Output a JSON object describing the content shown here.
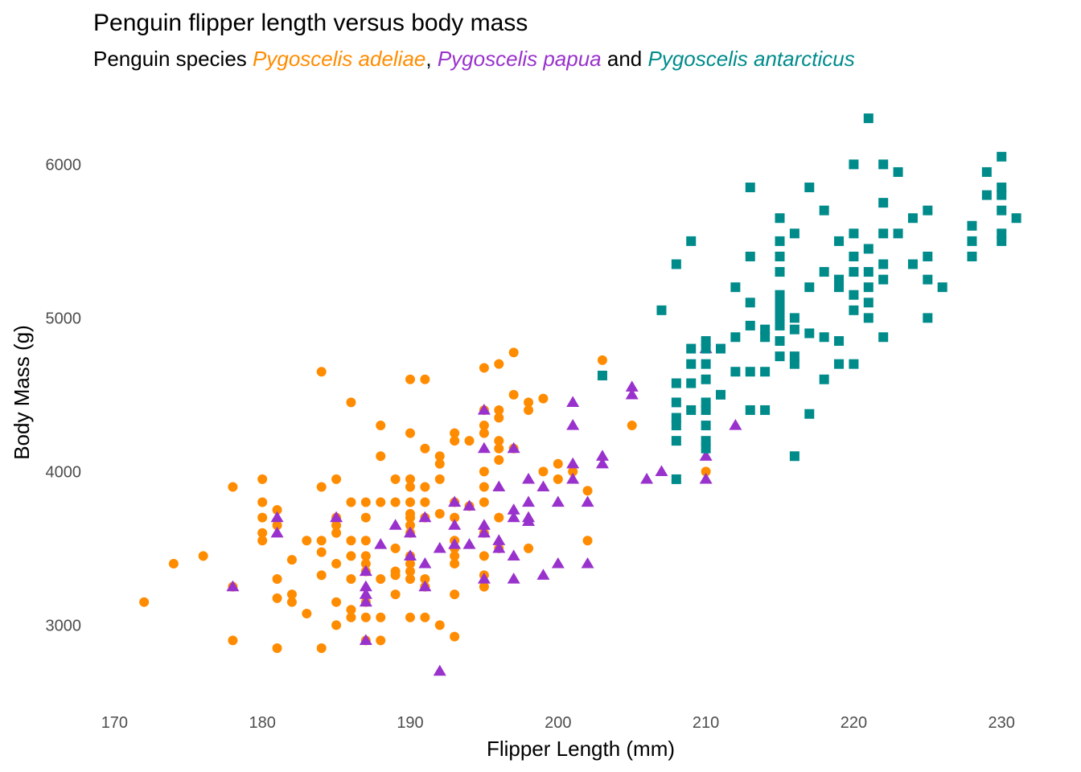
{
  "chart_data": {
    "type": "scatter",
    "title": "Penguin flipper length versus body mass",
    "subtitle": {
      "prefix": "Penguin species ",
      "sep1": ", ",
      "sep2": " and "
    },
    "xlabel": "Flipper Length (mm)",
    "ylabel": "Body Mass (g)",
    "xlim": [
      169,
      232
    ],
    "ylim": [
      2630,
      6400
    ],
    "xticks": [
      170,
      180,
      190,
      200,
      210,
      220,
      230
    ],
    "yticks": [
      3000,
      4000,
      5000,
      6000
    ],
    "grid": false,
    "legend": "none",
    "series": [
      {
        "name": "Pygoscelis adeliae",
        "marker": "circle",
        "color": "#FF8C00",
        "points": [
          [
            172,
            3150
          ],
          [
            174,
            3400
          ],
          [
            176,
            3450
          ],
          [
            178,
            3900
          ],
          [
            178,
            2900
          ],
          [
            178,
            3250
          ],
          [
            180,
            3950
          ],
          [
            180,
            3800
          ],
          [
            180,
            3700
          ],
          [
            180,
            3600
          ],
          [
            180,
            3550
          ],
          [
            181,
            3750
          ],
          [
            181,
            3650
          ],
          [
            181,
            3300
          ],
          [
            181,
            3175
          ],
          [
            181,
            2850
          ],
          [
            182,
            3200
          ],
          [
            182,
            3425
          ],
          [
            182,
            3150
          ],
          [
            183,
            3550
          ],
          [
            183,
            3075
          ],
          [
            184,
            4650
          ],
          [
            184,
            3900
          ],
          [
            184,
            3550
          ],
          [
            184,
            3475
          ],
          [
            184,
            3325
          ],
          [
            184,
            2850
          ],
          [
            185,
            3950
          ],
          [
            185,
            3700
          ],
          [
            185,
            3650
          ],
          [
            185,
            3600
          ],
          [
            185,
            3400
          ],
          [
            185,
            3150
          ],
          [
            185,
            3000
          ],
          [
            186,
            4450
          ],
          [
            186,
            3800
          ],
          [
            186,
            3550
          ],
          [
            186,
            3450
          ],
          [
            186,
            3300
          ],
          [
            186,
            3100
          ],
          [
            186,
            3050
          ],
          [
            187,
            3800
          ],
          [
            187,
            3700
          ],
          [
            187,
            3550
          ],
          [
            187,
            3450
          ],
          [
            187,
            3400
          ],
          [
            187,
            3350
          ],
          [
            187,
            3150
          ],
          [
            187,
            3050
          ],
          [
            187,
            2900
          ],
          [
            188,
            4300
          ],
          [
            188,
            4100
          ],
          [
            188,
            3800
          ],
          [
            188,
            3300
          ],
          [
            188,
            3050
          ],
          [
            188,
            2900
          ],
          [
            189,
            3950
          ],
          [
            189,
            3800
          ],
          [
            189,
            3500
          ],
          [
            189,
            3350
          ],
          [
            189,
            3325
          ],
          [
            189,
            3200
          ],
          [
            190,
            4600
          ],
          [
            190,
            4250
          ],
          [
            190,
            3950
          ],
          [
            190,
            3900
          ],
          [
            190,
            3800
          ],
          [
            190,
            3725
          ],
          [
            190,
            3700
          ],
          [
            190,
            3650
          ],
          [
            190,
            3600
          ],
          [
            190,
            3450
          ],
          [
            190,
            3400
          ],
          [
            190,
            3350
          ],
          [
            190,
            3300
          ],
          [
            190,
            3050
          ],
          [
            191,
            4600
          ],
          [
            191,
            4150
          ],
          [
            191,
            3900
          ],
          [
            191,
            3800
          ],
          [
            191,
            3700
          ],
          [
            191,
            3300
          ],
          [
            191,
            3250
          ],
          [
            191,
            3050
          ],
          [
            192,
            4100
          ],
          [
            192,
            4050
          ],
          [
            192,
            3950
          ],
          [
            192,
            3725
          ],
          [
            192,
            3000
          ],
          [
            193,
            4250
          ],
          [
            193,
            4200
          ],
          [
            193,
            3800
          ],
          [
            193,
            3700
          ],
          [
            193,
            3550
          ],
          [
            193,
            3500
          ],
          [
            193,
            3450
          ],
          [
            193,
            3400
          ],
          [
            193,
            3200
          ],
          [
            193,
            2925
          ],
          [
            194,
            4200
          ],
          [
            194,
            3775
          ],
          [
            195,
            4675
          ],
          [
            195,
            4400
          ],
          [
            195,
            4300
          ],
          [
            195,
            4250
          ],
          [
            195,
            4000
          ],
          [
            195,
            3900
          ],
          [
            195,
            3800
          ],
          [
            195,
            3600
          ],
          [
            195,
            3450
          ],
          [
            195,
            3325
          ],
          [
            195,
            3250
          ],
          [
            196,
            4700
          ],
          [
            196,
            4400
          ],
          [
            196,
            4350
          ],
          [
            196,
            4200
          ],
          [
            196,
            4150
          ],
          [
            196,
            4075
          ],
          [
            196,
            3700
          ],
          [
            196,
            3500
          ],
          [
            197,
            4775
          ],
          [
            197,
            4500
          ],
          [
            197,
            4150
          ],
          [
            198,
            4450
          ],
          [
            198,
            4400
          ],
          [
            198,
            3500
          ],
          [
            199,
            4475
          ],
          [
            199,
            4000
          ],
          [
            200,
            4050
          ],
          [
            200,
            3950
          ],
          [
            201,
            4000
          ],
          [
            202,
            3875
          ],
          [
            202,
            3550
          ],
          [
            203,
            4725
          ],
          [
            205,
            4300
          ],
          [
            210,
            4000
          ]
        ]
      },
      {
        "name": "Pygoscelis papua",
        "marker": "triangle",
        "color": "#9932CC",
        "points": [
          [
            178,
            3250
          ],
          [
            181,
            3700
          ],
          [
            181,
            3600
          ],
          [
            185,
            3700
          ],
          [
            187,
            3350
          ],
          [
            187,
            3250
          ],
          [
            187,
            3200
          ],
          [
            187,
            3150
          ],
          [
            187,
            2900
          ],
          [
            188,
            3525
          ],
          [
            189,
            3650
          ],
          [
            190,
            3600
          ],
          [
            190,
            3450
          ],
          [
            191,
            3700
          ],
          [
            191,
            3400
          ],
          [
            191,
            3250
          ],
          [
            192,
            3500
          ],
          [
            192,
            2700
          ],
          [
            193,
            3800
          ],
          [
            193,
            3650
          ],
          [
            193,
            3525
          ],
          [
            194,
            3775
          ],
          [
            194,
            3525
          ],
          [
            195,
            4400
          ],
          [
            195,
            4150
          ],
          [
            195,
            3650
          ],
          [
            195,
            3600
          ],
          [
            195,
            3300
          ],
          [
            196,
            3900
          ],
          [
            196,
            3550
          ],
          [
            196,
            3500
          ],
          [
            197,
            4150
          ],
          [
            197,
            3750
          ],
          [
            197,
            3700
          ],
          [
            197,
            3450
          ],
          [
            197,
            3300
          ],
          [
            198,
            3950
          ],
          [
            198,
            3800
          ],
          [
            198,
            3700
          ],
          [
            198,
            3675
          ],
          [
            199,
            3900
          ],
          [
            199,
            3325
          ],
          [
            200,
            3800
          ],
          [
            200,
            3400
          ],
          [
            201,
            4450
          ],
          [
            201,
            4300
          ],
          [
            201,
            4050
          ],
          [
            201,
            3950
          ],
          [
            202,
            3800
          ],
          [
            202,
            3400
          ],
          [
            203,
            4100
          ],
          [
            203,
            4050
          ],
          [
            205,
            4550
          ],
          [
            205,
            4500
          ],
          [
            206,
            3950
          ],
          [
            207,
            4000
          ],
          [
            210,
            4800
          ],
          [
            210,
            4100
          ],
          [
            210,
            3950
          ],
          [
            212,
            4300
          ]
        ]
      },
      {
        "name": "Pygoscelis antarcticus",
        "marker": "square",
        "color": "#008B8B",
        "points": [
          [
            203,
            4625
          ],
          [
            207,
            5050
          ],
          [
            208,
            5350
          ],
          [
            208,
            4575
          ],
          [
            208,
            4450
          ],
          [
            208,
            4350
          ],
          [
            208,
            4300
          ],
          [
            208,
            4200
          ],
          [
            208,
            3950
          ],
          [
            209,
            5500
          ],
          [
            209,
            4800
          ],
          [
            209,
            4700
          ],
          [
            209,
            4575
          ],
          [
            209,
            4400
          ],
          [
            210,
            4850
          ],
          [
            210,
            4800
          ],
          [
            210,
            4700
          ],
          [
            210,
            4600
          ],
          [
            210,
            4450
          ],
          [
            210,
            4400
          ],
          [
            210,
            4300
          ],
          [
            210,
            4200
          ],
          [
            210,
            4150
          ],
          [
            211,
            4800
          ],
          [
            211,
            4500
          ],
          [
            212,
            5200
          ],
          [
            212,
            4875
          ],
          [
            212,
            4650
          ],
          [
            213,
            5850
          ],
          [
            213,
            5400
          ],
          [
            213,
            5100
          ],
          [
            213,
            4950
          ],
          [
            213,
            4650
          ],
          [
            213,
            4400
          ],
          [
            214,
            4925
          ],
          [
            214,
            4875
          ],
          [
            214,
            4650
          ],
          [
            214,
            4400
          ],
          [
            215,
            5650
          ],
          [
            215,
            5500
          ],
          [
            215,
            5400
          ],
          [
            215,
            5300
          ],
          [
            215,
            5150
          ],
          [
            215,
            5100
          ],
          [
            215,
            5050
          ],
          [
            215,
            5000
          ],
          [
            215,
            4950
          ],
          [
            215,
            4850
          ],
          [
            215,
            4750
          ],
          [
            216,
            5550
          ],
          [
            216,
            5000
          ],
          [
            216,
            4925
          ],
          [
            216,
            4750
          ],
          [
            216,
            4700
          ],
          [
            216,
            4100
          ],
          [
            217,
            5850
          ],
          [
            217,
            5200
          ],
          [
            217,
            4900
          ],
          [
            217,
            4375
          ],
          [
            218,
            5700
          ],
          [
            218,
            5300
          ],
          [
            218,
            4875
          ],
          [
            218,
            4600
          ],
          [
            219,
            5500
          ],
          [
            219,
            5250
          ],
          [
            219,
            5200
          ],
          [
            219,
            4850
          ],
          [
            219,
            4700
          ],
          [
            220,
            6000
          ],
          [
            220,
            5550
          ],
          [
            220,
            5400
          ],
          [
            220,
            5300
          ],
          [
            220,
            5150
          ],
          [
            220,
            5050
          ],
          [
            220,
            4700
          ],
          [
            221,
            6300
          ],
          [
            221,
            5450
          ],
          [
            221,
            5300
          ],
          [
            221,
            5200
          ],
          [
            221,
            5100
          ],
          [
            221,
            5000
          ],
          [
            222,
            6000
          ],
          [
            222,
            5750
          ],
          [
            222,
            5550
          ],
          [
            222,
            5350
          ],
          [
            222,
            5250
          ],
          [
            222,
            4875
          ],
          [
            223,
            5950
          ],
          [
            223,
            5550
          ],
          [
            224,
            5650
          ],
          [
            224,
            5350
          ],
          [
            225,
            5700
          ],
          [
            225,
            5400
          ],
          [
            225,
            5250
          ],
          [
            225,
            5000
          ],
          [
            226,
            5200
          ],
          [
            228,
            5600
          ],
          [
            228,
            5500
          ],
          [
            228,
            5400
          ],
          [
            229,
            5950
          ],
          [
            229,
            5800
          ],
          [
            230,
            6050
          ],
          [
            230,
            5850
          ],
          [
            230,
            5800
          ],
          [
            230,
            5700
          ],
          [
            230,
            5550
          ],
          [
            230,
            5500
          ],
          [
            231,
            5650
          ]
        ]
      }
    ]
  }
}
